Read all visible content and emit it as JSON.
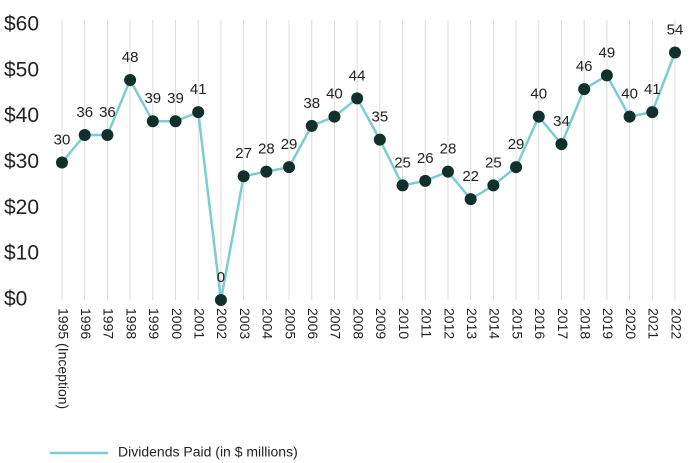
{
  "chart_data": {
    "type": "line",
    "categories": [
      "1995 (Inception)",
      "1996",
      "1997",
      "1998",
      "1999",
      "2000",
      "2001",
      "2002",
      "2003",
      "2004",
      "2005",
      "2006",
      "2007",
      "2008",
      "2009",
      "2010",
      "2011",
      "2012",
      "2013",
      "2014",
      "2015",
      "2016",
      "2017",
      "2018",
      "2019",
      "2020",
      "2021",
      "2022"
    ],
    "series": [
      {
        "name": "Dividends Paid (in $ millions)",
        "color": "#7ccdd0",
        "marker_color": "#11302b",
        "values": [
          30,
          36,
          36,
          48,
          39,
          39,
          41,
          0,
          27,
          28,
          29,
          38,
          40,
          44,
          35,
          25,
          26,
          28,
          22,
          25,
          29,
          40,
          34,
          46,
          49,
          40,
          41,
          54
        ]
      }
    ],
    "ylim": [
      0,
      60
    ],
    "yticks": [
      {
        "value": 0,
        "label": "$0"
      },
      {
        "value": 10,
        "label": "$10"
      },
      {
        "value": 20,
        "label": "$20"
      },
      {
        "value": 30,
        "label": "$30"
      },
      {
        "value": 40,
        "label": "$40"
      },
      {
        "value": 50,
        "label": "$50"
      },
      {
        "value": 60,
        "label": "$60"
      }
    ],
    "grid": "x",
    "legend": "bottom-left"
  }
}
